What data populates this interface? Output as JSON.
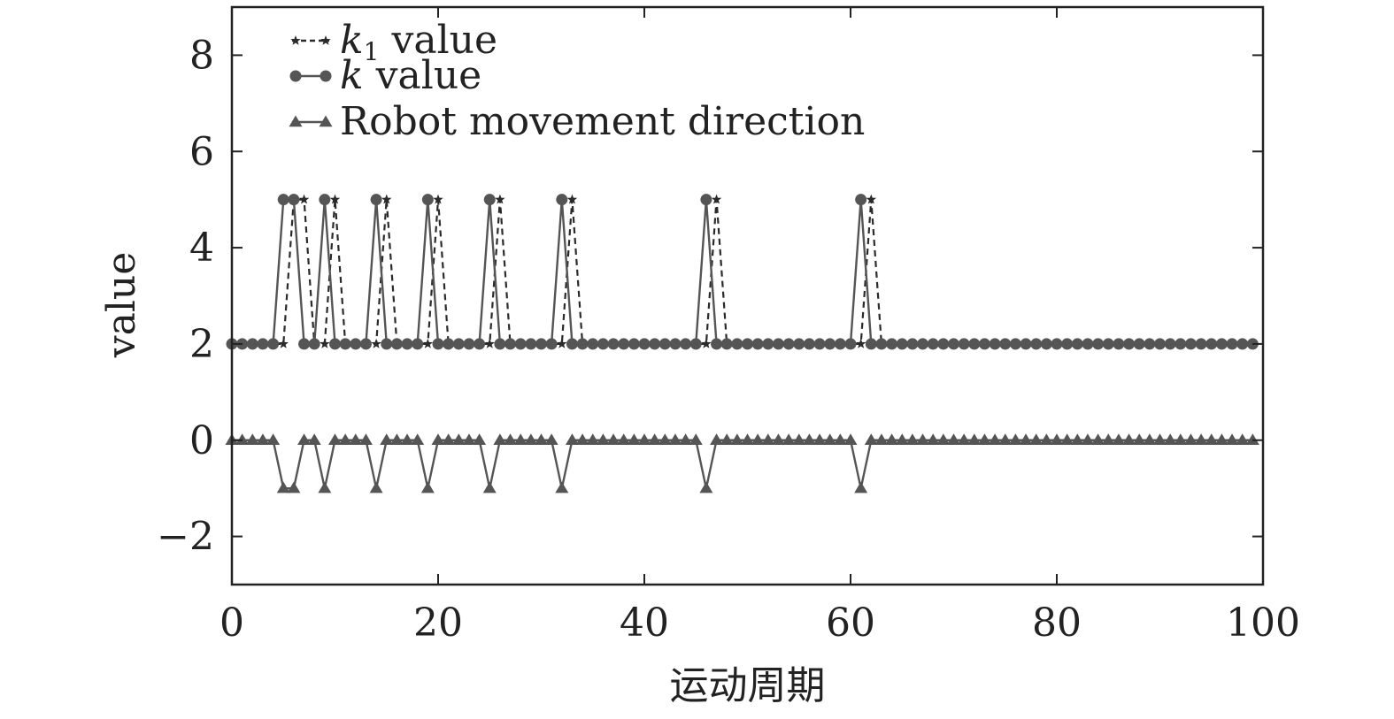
{
  "chart_data": {
    "type": "line",
    "xlabel": "运动周期",
    "ylabel": "value",
    "xlim": [
      0,
      100
    ],
    "ylim": [
      -3,
      9
    ],
    "x_ticks": [
      0,
      20,
      40,
      60,
      80,
      100
    ],
    "y_ticks": [
      -2,
      0,
      2,
      4,
      6,
      8
    ],
    "x_tick_labels": [
      "0",
      "20",
      "40",
      "60",
      "80",
      "100"
    ],
    "y_tick_labels": [
      "−2",
      "0",
      "2",
      "4",
      "6",
      "8"
    ],
    "grid": false,
    "legend_position": "top-left",
    "x": [
      0,
      1,
      2,
      3,
      4,
      5,
      6,
      7,
      8,
      9,
      10,
      11,
      12,
      13,
      14,
      15,
      16,
      17,
      18,
      19,
      20,
      21,
      22,
      23,
      24,
      25,
      26,
      27,
      28,
      29,
      30,
      31,
      32,
      33,
      34,
      35,
      36,
      37,
      38,
      39,
      40,
      41,
      42,
      43,
      44,
      45,
      46,
      47,
      48,
      49,
      50,
      51,
      52,
      53,
      54,
      55,
      56,
      57,
      58,
      59,
      60,
      61,
      62,
      63,
      64,
      65,
      66,
      67,
      68,
      69,
      70,
      71,
      72,
      73,
      74,
      75,
      76,
      77,
      78,
      79,
      80,
      81,
      82,
      83,
      84,
      85,
      86,
      87,
      88,
      89,
      90,
      91,
      92,
      93,
      94,
      95,
      96,
      97,
      98,
      99
    ],
    "series": [
      {
        "name": "k1 value",
        "legend_main": "k",
        "legend_sub": "1",
        "legend_rest": " value",
        "marker": "star",
        "line": "dashed",
        "color": "#2a2a2a",
        "values": [
          2,
          2,
          2,
          2,
          2,
          2,
          5,
          5,
          2,
          2,
          5,
          2,
          2,
          2,
          2,
          5,
          2,
          2,
          2,
          2,
          5,
          2,
          2,
          2,
          2,
          2,
          5,
          2,
          2,
          2,
          2,
          2,
          2,
          5,
          2,
          2,
          2,
          2,
          2,
          2,
          2,
          2,
          2,
          2,
          2,
          2,
          2,
          5,
          2,
          2,
          2,
          2,
          2,
          2,
          2,
          2,
          2,
          2,
          2,
          2,
          2,
          2,
          5,
          2,
          2,
          2,
          2,
          2,
          2,
          2,
          2,
          2,
          2,
          2,
          2,
          2,
          2,
          2,
          2,
          2,
          2,
          2,
          2,
          2,
          2,
          2,
          2,
          2,
          2,
          2,
          2,
          2,
          2,
          2,
          2,
          2,
          2,
          2,
          2,
          2
        ]
      },
      {
        "name": "k value",
        "legend_main": "k",
        "legend_sub": "",
        "legend_rest": " value",
        "marker": "circle",
        "line": "solid",
        "color": "#555555",
        "values": [
          2,
          2,
          2,
          2,
          2,
          5,
          5,
          2,
          2,
          5,
          2,
          2,
          2,
          2,
          5,
          2,
          2,
          2,
          2,
          5,
          2,
          2,
          2,
          2,
          2,
          5,
          2,
          2,
          2,
          2,
          2,
          2,
          5,
          2,
          2,
          2,
          2,
          2,
          2,
          2,
          2,
          2,
          2,
          2,
          2,
          2,
          5,
          2,
          2,
          2,
          2,
          2,
          2,
          2,
          2,
          2,
          2,
          2,
          2,
          2,
          2,
          5,
          2,
          2,
          2,
          2,
          2,
          2,
          2,
          2,
          2,
          2,
          2,
          2,
          2,
          2,
          2,
          2,
          2,
          2,
          2,
          2,
          2,
          2,
          2,
          2,
          2,
          2,
          2,
          2,
          2,
          2,
          2,
          2,
          2,
          2,
          2,
          2,
          2,
          2
        ]
      },
      {
        "name": "Robot movement direction",
        "legend_main": "Robot movement direction",
        "legend_sub": "",
        "legend_rest": "",
        "marker": "triangle",
        "line": "solid",
        "color": "#555555",
        "values": [
          0,
          0,
          0,
          0,
          0,
          -1,
          -1,
          0,
          0,
          -1,
          0,
          0,
          0,
          0,
          -1,
          0,
          0,
          0,
          0,
          -1,
          0,
          0,
          0,
          0,
          0,
          -1,
          0,
          0,
          0,
          0,
          0,
          0,
          -1,
          0,
          0,
          0,
          0,
          0,
          0,
          0,
          0,
          0,
          0,
          0,
          0,
          0,
          -1,
          0,
          0,
          0,
          0,
          0,
          0,
          0,
          0,
          0,
          0,
          0,
          0,
          0,
          0,
          -1,
          0,
          0,
          0,
          0,
          0,
          0,
          0,
          0,
          0,
          0,
          0,
          0,
          0,
          0,
          0,
          0,
          0,
          0,
          0,
          0,
          0,
          0,
          0,
          0,
          0,
          0,
          0,
          0,
          0,
          0,
          0,
          0,
          0,
          0,
          0,
          0,
          0,
          0
        ]
      }
    ]
  }
}
